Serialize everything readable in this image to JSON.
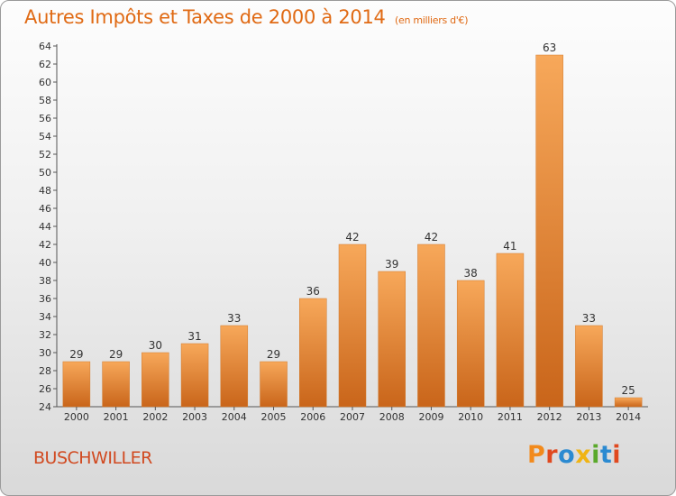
{
  "chart_data": {
    "type": "bar",
    "title": "Autres Impôts et Taxes de 2000 à 2014",
    "subtitle": "(en milliers d'€)",
    "categories": [
      "2000",
      "2001",
      "2002",
      "2003",
      "2004",
      "2005",
      "2006",
      "2007",
      "2008",
      "2009",
      "2010",
      "2011",
      "2012",
      "2013",
      "2014"
    ],
    "values": [
      29,
      29,
      30,
      31,
      33,
      29,
      36,
      42,
      39,
      42,
      38,
      41,
      63,
      33,
      25
    ],
    "ylim": [
      24,
      64
    ],
    "yticks": [
      24,
      26,
      28,
      30,
      32,
      34,
      36,
      38,
      40,
      42,
      44,
      46,
      48,
      50,
      52,
      54,
      56,
      58,
      60,
      62,
      64
    ],
    "grid": false,
    "bar_color": "#f0963a"
  },
  "footer": {
    "commune": "BUSCHWILLER",
    "logo": "Proxiti"
  },
  "colors": {
    "title": "#e06a14",
    "commune": "#d14a21",
    "logo_letters": [
      "#f28a1c",
      "#e0491f",
      "#2b8ad1",
      "#f0b414",
      "#5aa92b",
      "#2b8ad1",
      "#e0491f"
    ]
  }
}
